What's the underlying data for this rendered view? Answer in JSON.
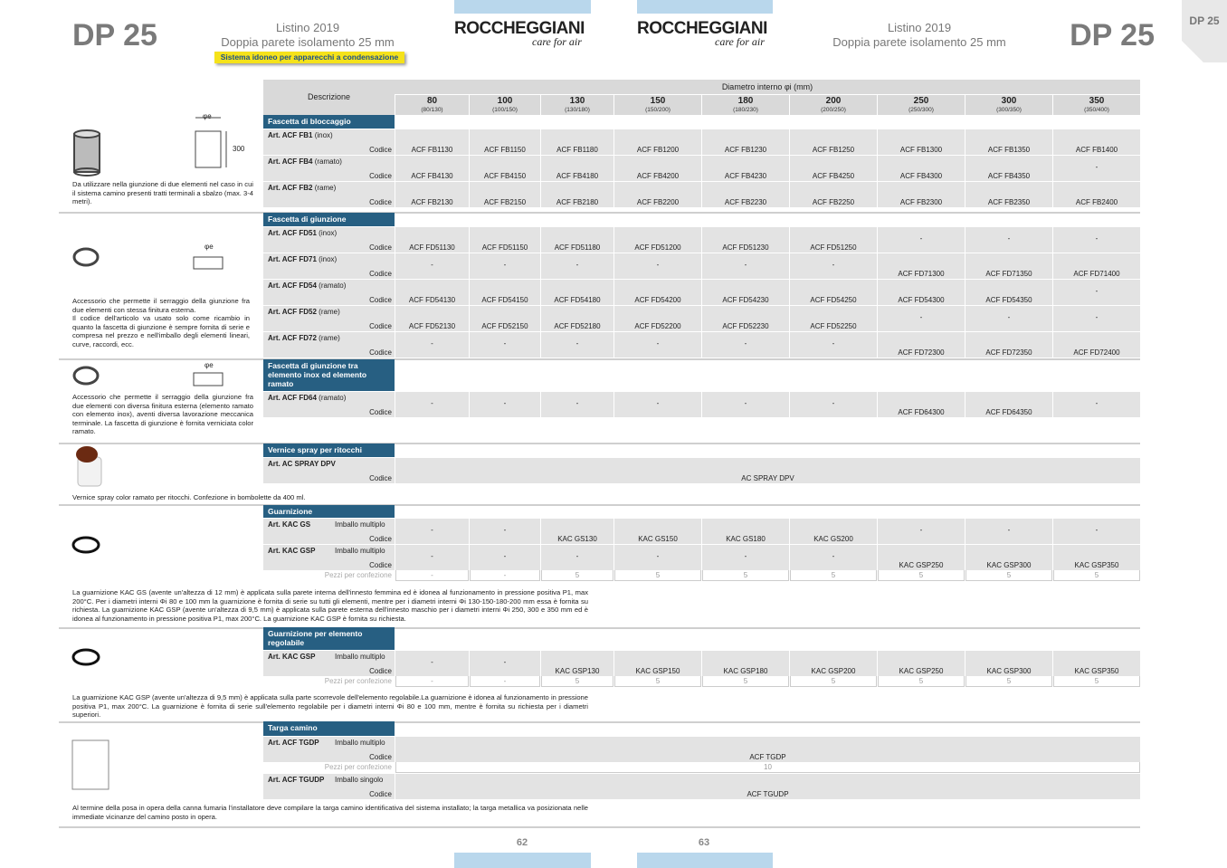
{
  "header": {
    "code_left": "DP 25",
    "listino_left": "Listino 2019",
    "subtitle_left": "Doppia parete isolamento 25 mm",
    "badge": "Sistema idoneo per apparecchi a condensazione",
    "logo_left": "ROCCHEGGIANI",
    "logo_left_tag": "care for air",
    "logo_right": "ROCCHEGGIANI",
    "logo_right_tag": "care for air",
    "listino_right": "Listino 2019",
    "subtitle_right": "Doppia parete isolamento 25 mm",
    "code_right": "DP 25",
    "tab": "DP 25"
  },
  "table": {
    "desc_header": "Descrizione",
    "diam_header": "Diametro interno φi (mm)",
    "columns": [
      {
        "d": 80,
        "sub": "(80/130)"
      },
      {
        "d": 100,
        "sub": "(100/150)"
      },
      {
        "d": 130,
        "sub": "(130/180)"
      },
      {
        "d": 150,
        "sub": "(150/200)"
      },
      {
        "d": 180,
        "sub": "(180/230)"
      },
      {
        "d": 200,
        "sub": "(200/250)"
      },
      {
        "d": 250,
        "sub": "(250/300)"
      },
      {
        "d": 300,
        "sub": "(300/350)"
      },
      {
        "d": 350,
        "sub": "(350/400)"
      }
    ]
  },
  "sections": [
    {
      "title": "Fascetta di bloccaggio",
      "dims": [
        "φe",
        "300"
      ],
      "note": [
        "Da utilizzare nella giunzione di due elementi nel caso in cui il sistema camino presenti tratti terminali a sbalzo (max. 3-4 metri)."
      ],
      "rows": [
        {
          "art": "Art. ACF FB1",
          "spec": "(inox)",
          "code_label": "Codice",
          "codes": [
            "ACF FB1130",
            "ACF FB1150",
            "ACF FB1180",
            "ACF FB1200",
            "ACF FB1230",
            "ACF FB1250",
            "ACF FB1300",
            "ACF FB1350",
            "ACF FB1400"
          ]
        },
        {
          "art": "Art. ACF FB4",
          "spec": "(ramato)",
          "code_label": "Codice",
          "codes": [
            "ACF FB4130",
            "ACF FB4150",
            "ACF FB4180",
            "ACF FB4200",
            "ACF FB4230",
            "ACF FB4250",
            "ACF FB4300",
            "ACF FB4350",
            "-"
          ]
        },
        {
          "art": "Art. ACF FB2",
          "spec": "(rame)",
          "code_label": "Codice",
          "codes": [
            "ACF FB2130",
            "ACF FB2150",
            "ACF FB2180",
            "ACF FB2200",
            "ACF FB2230",
            "ACF FB2250",
            "ACF FB2300",
            "ACF FB2350",
            "ACF FB2400"
          ]
        }
      ]
    },
    {
      "title": "Fascetta di giunzione",
      "dims": [
        "φe"
      ],
      "note": [
        "Accessorio che permette il serraggio della giunzione fra due elementi con stessa finitura esterna.",
        "Il codice dell'articolo va usato solo come ricambio in quanto la fascetta di giunzione è sempre fornita di serie e compresa nel prezzo e nell'imballo degli elementi lineari, curve, raccordi, ecc."
      ],
      "rows": [
        {
          "art": "Art. ACF FD51",
          "spec": "(inox)",
          "code_label": "Codice",
          "codes": [
            "ACF FD51130",
            "ACF FD51150",
            "ACF FD51180",
            "ACF FD51200",
            "ACF FD51230",
            "ACF FD51250",
            "-",
            "-",
            "-"
          ]
        },
        {
          "art": "Art. ACF FD71",
          "spec": "(inox)",
          "code_label": "Codice",
          "codes": [
            "-",
            "-",
            "-",
            "-",
            "-",
            "-",
            "ACF FD71300",
            "ACF FD71350",
            "ACF FD71400"
          ]
        },
        {
          "art": "Art. ACF FD54",
          "spec": "(ramato)",
          "code_label": "Codice",
          "codes": [
            "ACF FD54130",
            "ACF FD54150",
            "ACF FD54180",
            "ACF FD54200",
            "ACF FD54230",
            "ACF FD54250",
            "ACF FD54300",
            "ACF FD54350",
            "-"
          ]
        },
        {
          "art": "Art. ACF FD52",
          "spec": "(rame)",
          "code_label": "Codice",
          "codes": [
            "ACF FD52130",
            "ACF FD52150",
            "ACF FD52180",
            "ACF FD52200",
            "ACF FD52230",
            "ACF FD52250",
            "-",
            "-",
            "-"
          ]
        },
        {
          "art": "Art. ACF FD72",
          "spec": "(rame)",
          "code_label": "Codice",
          "codes": [
            "-",
            "-",
            "-",
            "-",
            "-",
            "-",
            "ACF FD72300",
            "ACF FD72350",
            "ACF FD72400"
          ]
        }
      ]
    },
    {
      "title": "Fascetta di giunzione tra elemento inox ed elemento ramato",
      "dims": [
        "φe"
      ],
      "note": [
        "Accessorio che permette il serraggio della giunzione fra due elementi con diversa finitura esterna (elemento ramato con elemento inox), aventi diversa lavorazione meccanica terminale. La fascetta di giunzione è fornita verniciata color ramato."
      ],
      "rows": [
        {
          "art": "Art. ACF FD64",
          "spec": "(ramato)",
          "code_label": "Codice",
          "codes": [
            "-",
            "-",
            "-",
            "-",
            "-",
            "-",
            "ACF FD64300",
            "ACF FD64350",
            "-"
          ]
        }
      ]
    },
    {
      "title": "Vernice spray per ritocchi",
      "note": [
        "Vernice spray color ramato per ritocchi. Confezione in bombolette da 400 ml."
      ],
      "rows": [
        {
          "art": "Art. AC SPRAY DPV",
          "code_label": "Codice",
          "codes": [
            "AC SPRAY DPV"
          ]
        }
      ]
    },
    {
      "title": "Guarnizione",
      "note": [
        "La guarnizione KAC GS (avente un'altezza di 12 mm) è applicata sulla parete interna dell'innesto femmina ed è idonea al funzionamento in pressione positiva P1, max 200°C. Per i diametri interni Φi 80 e 100 mm la guarnizione è fornita di serie su tutti gli elementi, mentre per i diametri interni Φi 130-150-180-200 mm essa è fornita su richiesta. La guarnizione KAC GSP (avente un'altezza di 9,5 mm) è applicata sulla parete esterna dell'innesto maschio per i diametri interni Φi 250, 300 e 350 mm ed è idonea al funzionamento in pressione positiva P1, max 200°C. La guarnizione KAC GSP è fornita su richiesta."
      ],
      "rows": [
        {
          "art": "Art. KAC GS",
          "pack": "Imballo multiplo",
          "code_label": "Codice",
          "codes": [
            "-",
            "-",
            "KAC GS130",
            "KAC GS150",
            "KAC GS180",
            "KAC GS200",
            "-",
            "-",
            "-"
          ]
        },
        {
          "art": "Art. KAC GSP",
          "pack": "Imballo multiplo",
          "code_label": "Codice",
          "codes": [
            "-",
            "-",
            "-",
            "-",
            "-",
            "-",
            "KAC GSP250",
            "KAC GSP300",
            "KAC GSP350"
          ],
          "pieces": {
            "label": "Pezzi per confezione",
            "values": [
              "-",
              "-",
              5,
              5,
              5,
              5,
              5,
              5,
              5
            ]
          }
        }
      ]
    },
    {
      "title": "Guarnizione per elemento regolabile",
      "note": [
        "La guarnizione KAC GSP (avente un'altezza di 9,5 mm) è applicata sulla parte scorrevole dell'elemento regolabile.La guarnizione è idonea al funzionamento in pressione positiva P1, max 200°C. La guarnizione è fornita di serie sull'elemento regolabile per i diametri interni Φi 80 e 100 mm,  mentre è fornita su richiesta per i diametri superiori."
      ],
      "rows": [
        {
          "art": "Art. KAC GSP",
          "pack": "Imballo multiplo",
          "code_label": "Codice",
          "codes": [
            "-",
            "-",
            "KAC GSP130",
            "KAC GSP150",
            "KAC GSP180",
            "KAC GSP200",
            "KAC GSP250",
            "KAC GSP300",
            "KAC GSP350"
          ],
          "pieces": {
            "label": "Pezzi per confezione",
            "values": [
              "-",
              "-",
              5,
              5,
              5,
              5,
              5,
              5,
              5
            ]
          }
        }
      ]
    },
    {
      "title": "Targa camino",
      "note": [
        "Al termine della posa in opera della canna fumaria l'installatore deve compilare la targa camino identificativa del sistema installato; la targa metallica va posizionata nelle immediate vicinanze del camino posto in opera."
      ],
      "rows": [
        {
          "art": "Art. ACF TGDP",
          "pack": "Imballo multiplo",
          "code_label": "Codice",
          "codes": [
            "ACF TGDP"
          ],
          "pieces": {
            "label": "Pezzi per confezione",
            "values": [
              10
            ]
          }
        },
        {
          "art": "Art. ACF TGUDP",
          "pack": "Imballo singolo",
          "code_label": "Codice",
          "codes": [
            "ACF TGUDP"
          ]
        }
      ]
    }
  ],
  "footer": {
    "page_left": 62,
    "page_right": 63
  }
}
